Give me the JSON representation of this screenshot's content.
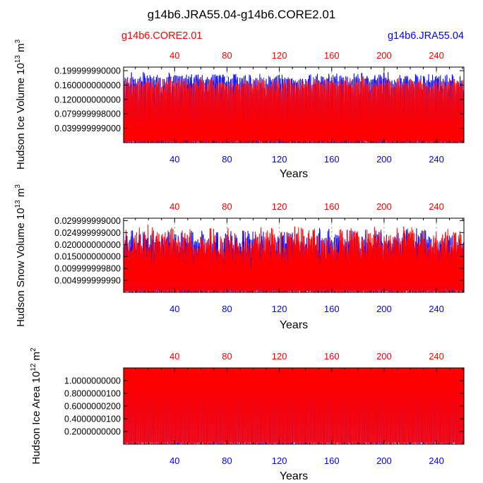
{
  "title": "g14b6.JRA55.04-g14b6.CORE2.01",
  "legend": {
    "left": "g14b6.CORE2.01",
    "right": "g14b6.JRA55.04"
  },
  "colors": {
    "core2": "#ff0000",
    "jra55": "#0000ff",
    "text": "#000000",
    "frame": "#000000",
    "grid": "#999999"
  },
  "chart_data": [
    {
      "type": "line",
      "title": "Hudson Ice Volume",
      "xlabel": "Years",
      "ylabel": "Hudson Ice Volume 10",
      "ylabel_exp": "13",
      "ylabel_unit": " m",
      "ylabel_unit_exp": "3",
      "xlim": [
        1,
        261
      ],
      "ylim": [
        0.0,
        0.21
      ],
      "xticks": [
        40,
        80,
        120,
        160,
        200,
        240
      ],
      "xtick_labels": [
        "40",
        "80",
        "120",
        "160",
        "200",
        "240"
      ],
      "yticks": [
        0.04,
        0.08,
        0.12,
        0.16,
        0.2
      ],
      "ytick_labels": [
        "0.039999999000",
        "0.079999998000",
        "0.120000000000",
        "0.160000000000",
        "0.199999990000"
      ],
      "series": [
        {
          "name": "g14b6.JRA55.04",
          "color": "#0000ff",
          "model": "sawtooth",
          "peak_base": 0.185,
          "peak_jitter": 0.012,
          "trough": 0.0
        },
        {
          "name": "g14b6.CORE2.01",
          "color": "#ff0000",
          "model": "sawtooth",
          "peak_base": 0.172,
          "peak_jitter": 0.012,
          "trough": 0.0
        }
      ]
    },
    {
      "type": "line",
      "title": "Hudson Snow Volume",
      "xlabel": "Years",
      "ylabel": "Hudson Snow Volume 10",
      "ylabel_exp": "13",
      "ylabel_unit": " m",
      "ylabel_unit_exp": "3",
      "xlim": [
        1,
        261
      ],
      "ylim": [
        0.0,
        0.031
      ],
      "xticks": [
        40,
        80,
        120,
        160,
        200,
        240
      ],
      "xtick_labels": [
        "40",
        "80",
        "120",
        "160",
        "200",
        "240"
      ],
      "yticks": [
        0.005,
        0.01,
        0.015,
        0.02,
        0.025,
        0.03
      ],
      "ytick_labels": [
        "0.004999999990",
        "0.009999999800",
        "0.015000000000",
        "0.020000000000",
        "0.024999999000",
        "0.029999999000"
      ],
      "series": [
        {
          "name": "g14b6.JRA55.04",
          "color": "#0000ff",
          "model": "spiky",
          "peak_base": 0.0235,
          "peak_jitter": 0.0035,
          "trough": 0.0
        },
        {
          "name": "g14b6.CORE2.01",
          "color": "#ff0000",
          "model": "spiky",
          "peak_base": 0.023,
          "peak_jitter": 0.0055,
          "trough": 0.0
        }
      ]
    },
    {
      "type": "line",
      "title": "Hudson Ice Area",
      "xlabel": "Years",
      "ylabel": "Hudson Ice Area 10",
      "ylabel_exp": "12",
      "ylabel_unit": " m",
      "ylabel_unit_exp": "2",
      "xlim": [
        1,
        261
      ],
      "ylim": [
        0.0,
        1.2
      ],
      "xticks": [
        40,
        80,
        120,
        160,
        200,
        240
      ],
      "xtick_labels": [
        "40",
        "80",
        "120",
        "160",
        "200",
        "240"
      ],
      "yticks": [
        0.2,
        0.4,
        0.6,
        0.8,
        1.0
      ],
      "ytick_labels": [
        "0.2000000000",
        "0.4000000100",
        "0.6000000200",
        "0.8000000100",
        "1.0000000000"
      ],
      "series": [
        {
          "name": "g14b6.JRA55.04",
          "color": "#0000ff",
          "model": "saturated",
          "peak_base": 1.2,
          "peak_jitter": 0.0,
          "trough": 0.0
        },
        {
          "name": "g14b6.CORE2.01",
          "color": "#ff0000",
          "model": "saturated",
          "peak_base": 1.2,
          "peak_jitter": 0.0,
          "trough": 0.0
        }
      ]
    }
  ]
}
